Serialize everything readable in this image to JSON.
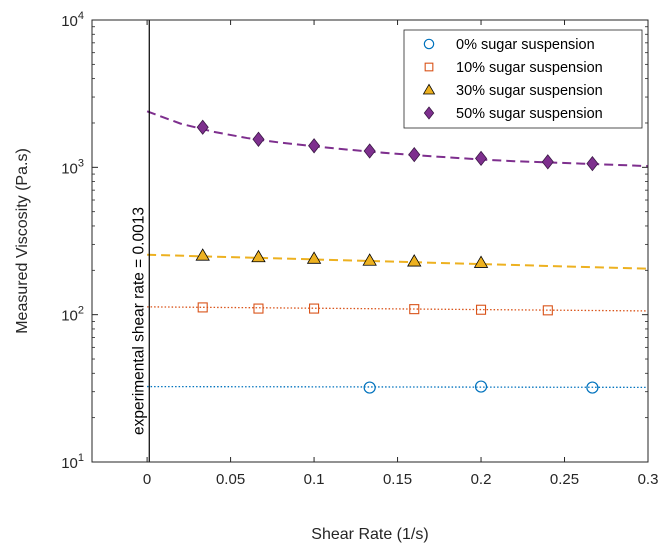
{
  "chart_data": {
    "type": "scatter",
    "xlabel": "Shear Rate (1/s)",
    "ylabel": "Measured Viscosity (Pa.s)",
    "xlim": [
      -0.033,
      0.3
    ],
    "ylim": [
      10,
      10000
    ],
    "yscale": "log",
    "grid": false,
    "legend_position": "top-right",
    "x_ticks": [
      0,
      0.05,
      0.1,
      0.15,
      0.2,
      0.25,
      0.3
    ],
    "x_tick_labels": [
      "0",
      "0.05",
      "0.1",
      "0.15",
      "0.2",
      "0.25",
      "0.3"
    ],
    "y_ticks": [
      10,
      100,
      1000,
      10000
    ],
    "y_tick_labels": [
      {
        "base": "10",
        "exp": "1"
      },
      {
        "base": "10",
        "exp": "2"
      },
      {
        "base": "10",
        "exp": "3"
      },
      {
        "base": "10",
        "exp": "4"
      }
    ],
    "annotation": {
      "text": "experimental shear rate = 0.0013",
      "x": 0.0013
    },
    "series": [
      {
        "name": "0% sugar suspension",
        "marker": "circle",
        "color": "#0072BD",
        "fill": "none",
        "line_style": "dotted",
        "x": [
          0.1333,
          0.2,
          0.2667
        ],
        "y": [
          32,
          32.5,
          32
        ],
        "fit": {
          "x": [
            0,
            0.3
          ],
          "y": [
            32.5,
            32.1
          ]
        }
      },
      {
        "name": "10% sugar suspension",
        "marker": "square",
        "color": "#D95319",
        "fill": "none",
        "line_style": "dotted",
        "x": [
          0.0333,
          0.0667,
          0.1,
          0.16,
          0.2,
          0.24
        ],
        "y": [
          112,
          110,
          110,
          109,
          108,
          107
        ],
        "fit": {
          "x": [
            0,
            0.3
          ],
          "y": [
            113,
            106
          ]
        }
      },
      {
        "name": "30% sugar suspension",
        "marker": "triangle",
        "color": "#EDB120",
        "fill": "#EDB120",
        "line_style": "dashed",
        "x": [
          0.0333,
          0.0667,
          0.1,
          0.1333,
          0.16,
          0.2
        ],
        "y": [
          252,
          246,
          240,
          233,
          230,
          225
        ],
        "fit": {
          "x": [
            0,
            0.3
          ],
          "y": [
            255,
            205
          ]
        }
      },
      {
        "name": "50% sugar suspension",
        "marker": "diamond",
        "color": "#7E2F8E",
        "fill": "#7E2F8E",
        "line_style": "dashed",
        "x": [
          0.0333,
          0.0667,
          0.1,
          0.1333,
          0.16,
          0.2,
          0.24,
          0.2667
        ],
        "y": [
          1870,
          1550,
          1400,
          1290,
          1220,
          1150,
          1090,
          1060
        ],
        "fit": {
          "x": [
            0,
            0.02,
            0.04,
            0.06,
            0.08,
            0.1,
            0.12,
            0.14,
            0.16,
            0.18,
            0.2,
            0.22,
            0.24,
            0.26,
            0.28,
            0.3
          ],
          "y": [
            2400,
            1980,
            1740,
            1580,
            1470,
            1390,
            1320,
            1260,
            1210,
            1170,
            1130,
            1100,
            1080,
            1060,
            1040,
            1020
          ]
        }
      }
    ]
  }
}
